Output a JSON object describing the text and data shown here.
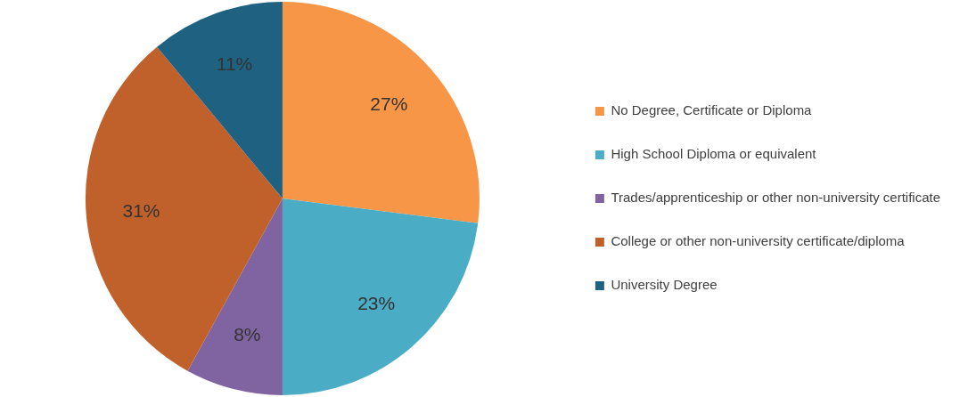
{
  "chart_data": {
    "type": "pie",
    "categories": [
      "No Degree, Certificate or Diploma",
      "High School Diploma or equivalent",
      "Trades/apprenticeship or other non-university certificate",
      "College or other non-university certificate/diploma",
      "University Degree"
    ],
    "values": [
      27,
      23,
      8,
      31,
      11
    ],
    "colors": [
      "#f79646",
      "#4bacc6",
      "#8064a2",
      "#c0602a",
      "#1f6180"
    ],
    "value_labels": [
      "27%",
      "23%",
      "8%",
      "31%",
      "11%"
    ],
    "legend": "right"
  }
}
